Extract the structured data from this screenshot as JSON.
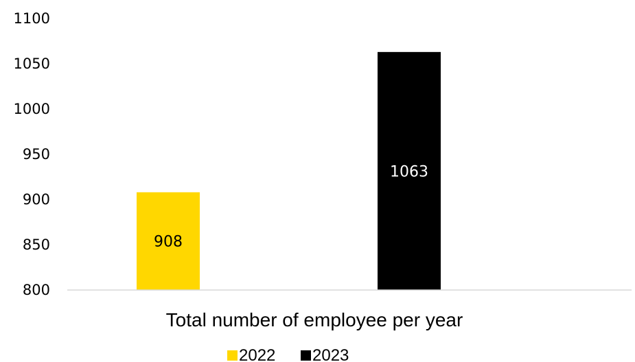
{
  "chart_data": {
    "type": "bar",
    "title": "",
    "xlabel": "Total number of employee per year",
    "ylabel": "",
    "ylim": [
      800,
      1100
    ],
    "yticks": [
      "800",
      "850",
      "900",
      "950",
      "1000",
      "1050",
      "1100"
    ],
    "grid": false,
    "legend_position": "bottom",
    "series": [
      {
        "name": "2022",
        "values": [
          908
        ],
        "color": "#FFD700",
        "label_color": "#000000"
      },
      {
        "name": "2023",
        "values": [
          1063
        ],
        "color": "#000000",
        "label_color": "#ffffff"
      }
    ]
  }
}
